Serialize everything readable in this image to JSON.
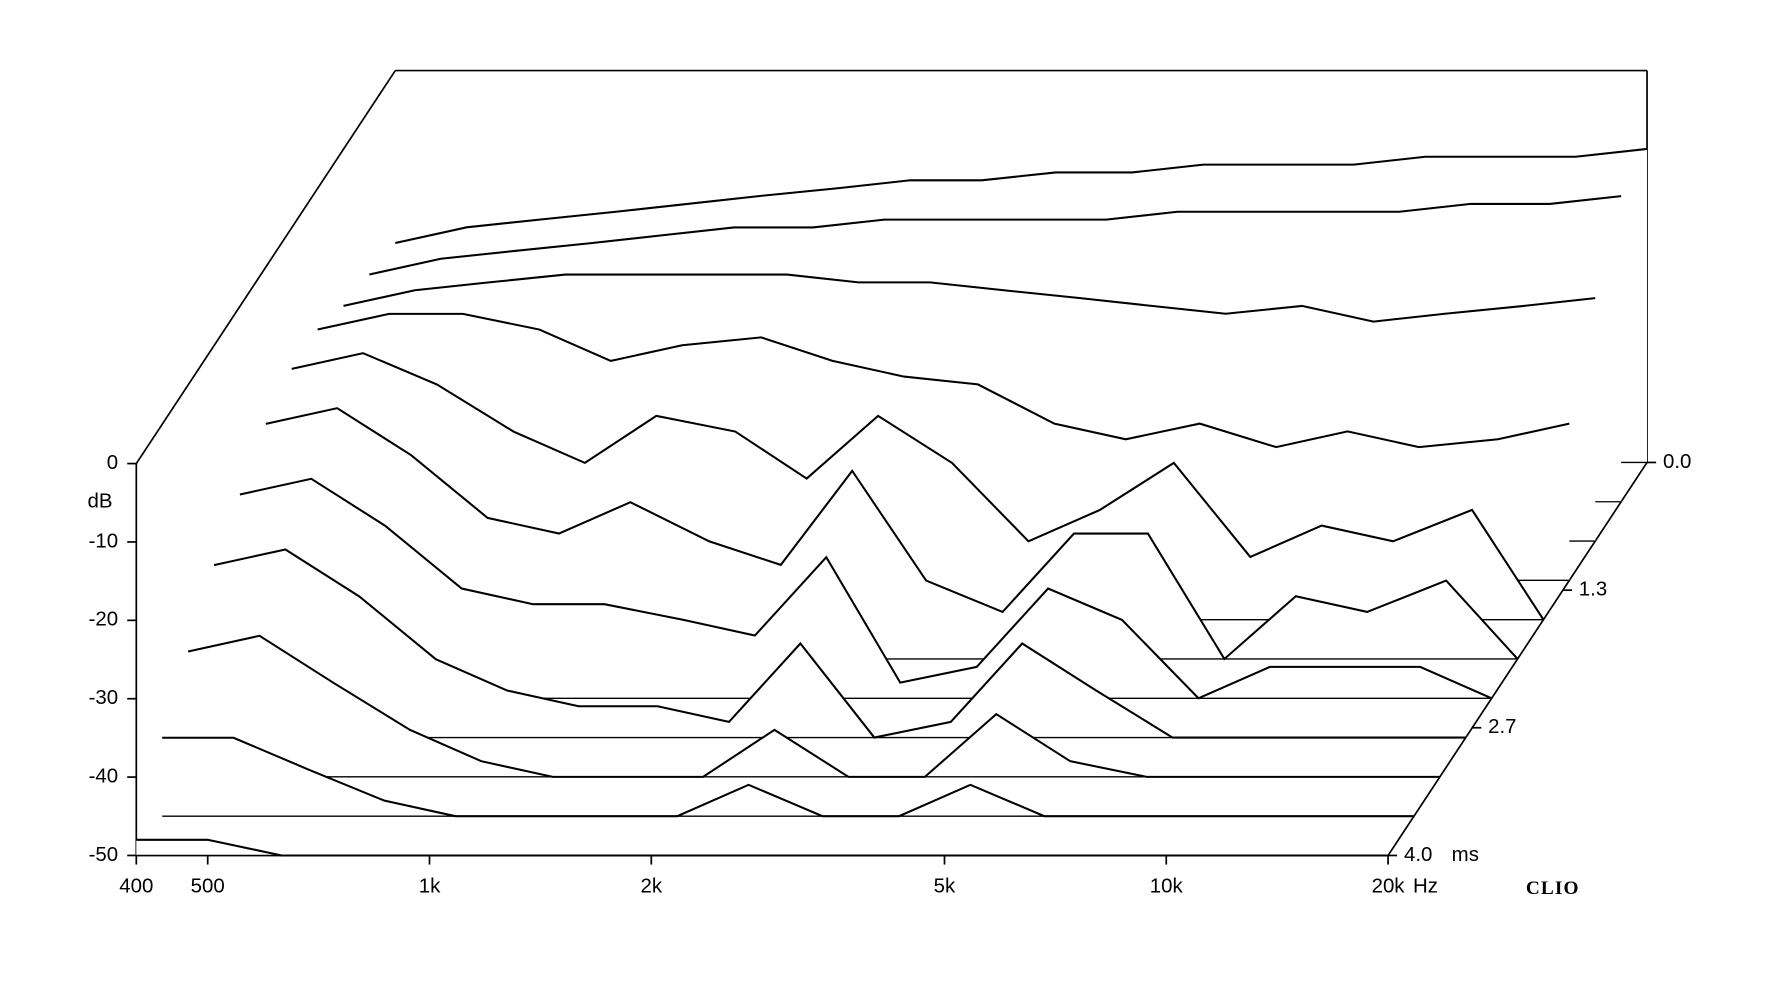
{
  "chart_data": {
    "type": "waterfall",
    "x_unit": "Hz",
    "y_label": "dB",
    "z_unit": "ms",
    "brand": "CLIO",
    "log_x": true,
    "color": "#000000",
    "fill": "#ffffff",
    "xlim": [
      400,
      20000
    ],
    "xticks": [
      400,
      500,
      {
        "value": 1000,
        "label": "1k"
      },
      {
        "value": 2000,
        "label": "2k"
      },
      {
        "value": 5000,
        "label": "5k"
      },
      {
        "value": 10000,
        "label": "10k"
      },
      {
        "value": 20000,
        "label": "20k"
      }
    ],
    "ylim": [
      -50,
      0
    ],
    "yticks": [
      0,
      -10,
      -20,
      -30,
      -40,
      -50
    ],
    "zlim": [
      0,
      4
    ],
    "zticks": [
      {
        "value": 0,
        "label": "0.0"
      },
      1.3,
      2.7,
      {
        "value": 4,
        "label": "4.0"
      }
    ],
    "frequencies": [
      400,
      500,
      630,
      800,
      1000,
      1250,
      1600,
      2000,
      2500,
      3150,
      4000,
      5000,
      6300,
      8000,
      10000,
      12500,
      16000,
      20000
    ],
    "slices": [
      {
        "time": 0,
        "values": [
          -22,
          -20,
          -19,
          -18,
          -17,
          -16,
          -15,
          -14,
          -14,
          -13,
          -13,
          -12,
          -12,
          -12,
          -11,
          -11,
          -11,
          -10
        ]
      },
      {
        "time": 0.4,
        "values": [
          -21,
          -19,
          -18,
          -17,
          -16,
          -15,
          -15,
          -14,
          -14,
          -14,
          -14,
          -13,
          -13,
          -13,
          -13,
          -12,
          -12,
          -11
        ]
      },
      {
        "time": 0.8,
        "values": [
          -20,
          -18,
          -17,
          -16,
          -16,
          -16,
          -16,
          -17,
          -17,
          -18,
          -19,
          -20,
          -21,
          -20,
          -22,
          -21,
          -20,
          -19
        ]
      },
      {
        "time": 1.2,
        "values": [
          -18,
          -16,
          -16,
          -18,
          -22,
          -20,
          -19,
          -22,
          -24,
          -25,
          -30,
          -32,
          -30,
          -33,
          -31,
          -33,
          -32,
          -30
        ]
      },
      {
        "time": 1.6,
        "values": [
          -18,
          -16,
          -20,
          -26,
          -30,
          -24,
          -26,
          -32,
          -24,
          -30,
          -40,
          -36,
          -30,
          -42,
          -38,
          -40,
          -36,
          -50
        ]
      },
      {
        "time": 2.0,
        "values": [
          -20,
          -18,
          -24,
          -32,
          -34,
          -30,
          -35,
          -38,
          -26,
          -40,
          -44,
          -34,
          -34,
          -50,
          -42,
          -44,
          -40,
          -50
        ]
      },
      {
        "time": 2.4,
        "values": [
          -24,
          -22,
          -28,
          -36,
          -38,
          -38,
          -40,
          -42,
          -32,
          -48,
          -46,
          -36,
          -40,
          -50,
          -46,
          -46,
          -46,
          -50
        ]
      },
      {
        "time": 2.8,
        "values": [
          -28,
          -26,
          -32,
          -40,
          -44,
          -46,
          -46,
          -48,
          -38,
          -50,
          -48,
          -38,
          -44,
          -50,
          -50,
          -50,
          -50,
          -50
        ]
      },
      {
        "time": 3.2,
        "values": [
          -34,
          -32,
          -38,
          -44,
          -48,
          -50,
          -50,
          -50,
          -44,
          -50,
          -50,
          -42,
          -48,
          -50,
          -50,
          -50,
          -50,
          -50
        ]
      },
      {
        "time": 3.6,
        "values": [
          -40,
          -40,
          -44,
          -48,
          -50,
          -50,
          -50,
          -50,
          -46,
          -50,
          -50,
          -46,
          -50,
          -50,
          -50,
          -50,
          -50,
          -50
        ]
      },
      {
        "time": 4.0,
        "values": [
          -48,
          -48,
          -50,
          -50,
          -50,
          -50,
          -50,
          -50,
          -50,
          -50,
          -50,
          -50,
          -50,
          -50,
          -50,
          -50,
          -50,
          -50
        ]
      }
    ]
  }
}
